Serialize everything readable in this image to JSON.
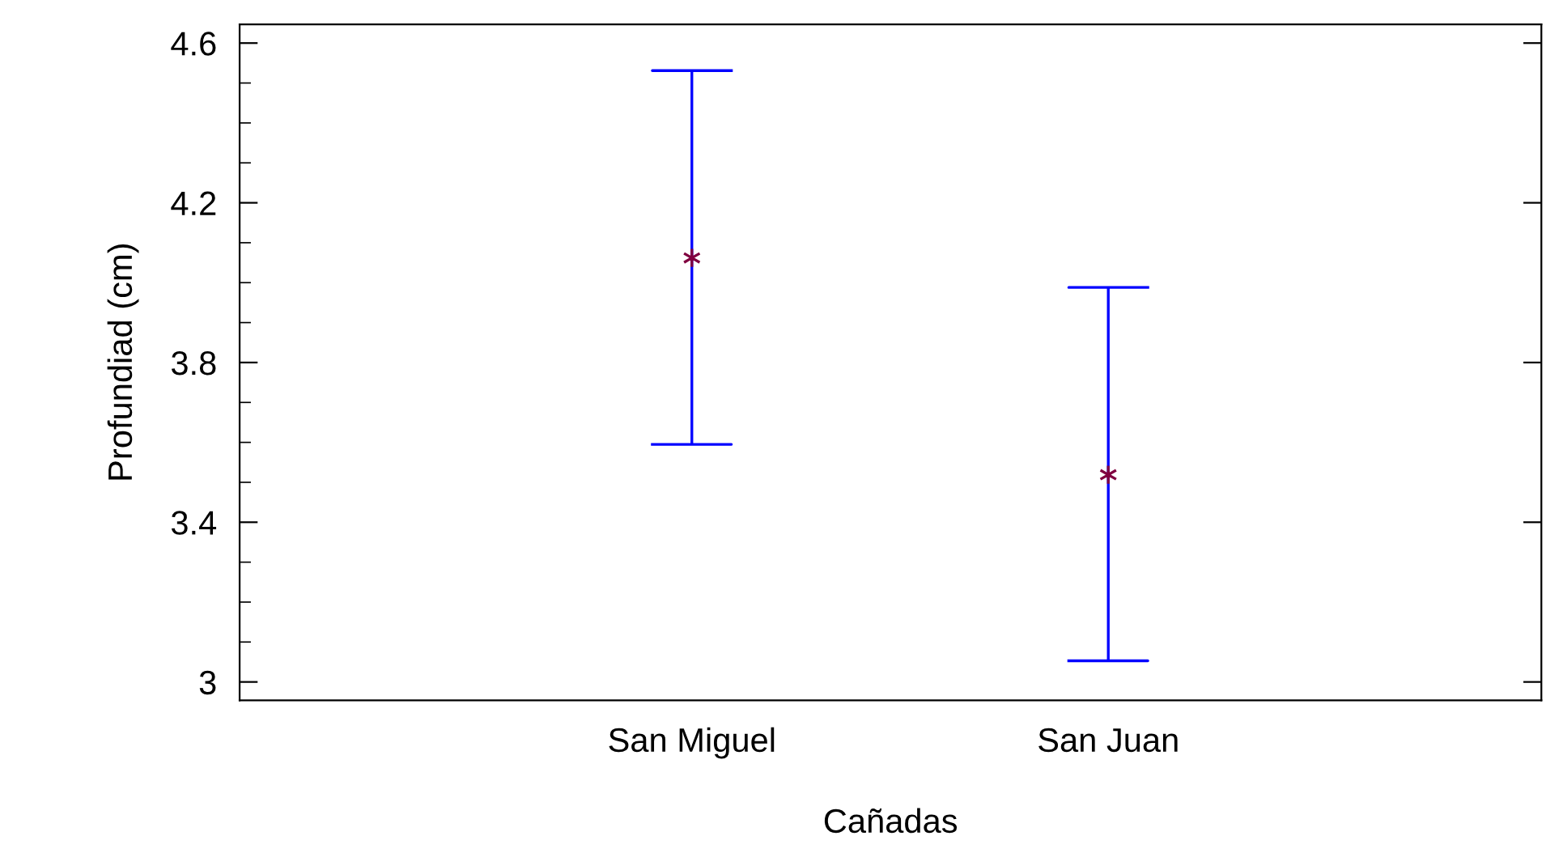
{
  "chart_data": {
    "type": "scatter",
    "xlabel": "Cañadas",
    "ylabel": "Profundiad (cm)",
    "categories": [
      "San Miguel",
      "San Juan"
    ],
    "values": [
      4.062,
      3.519
    ],
    "errors": [
      [
        3.595,
        4.531
      ],
      [
        3.053,
        3.988
      ]
    ],
    "color": "#0000ff",
    "colors": [
      "#800040",
      "#800040"
    ],
    "ylim": [
      2.954,
      4.647
    ],
    "yticks": [
      3,
      3.4,
      3.8,
      4.2,
      4.6
    ],
    "grid": false,
    "marker": "cross"
  }
}
